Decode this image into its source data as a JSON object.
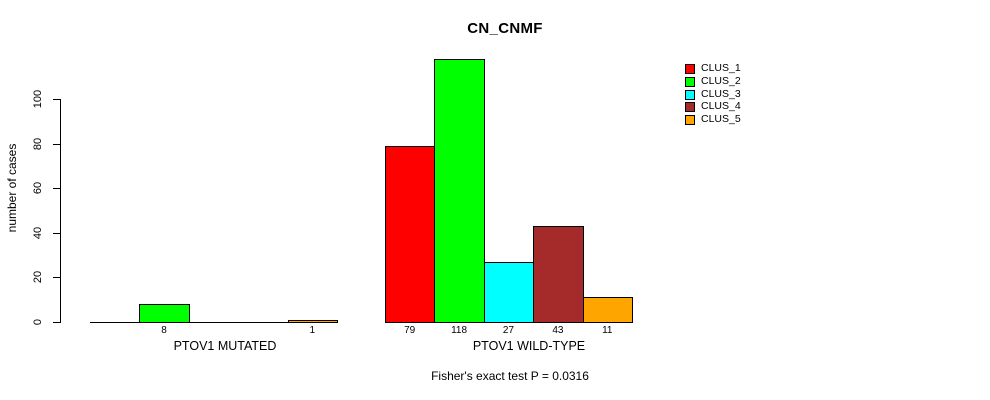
{
  "title": "CN_CNMF",
  "ylabel": "number of cases",
  "caption": "Fisher's exact test P = 0.0316",
  "chart_data": {
    "type": "bar",
    "title": "CN_CNMF",
    "xlabel": "",
    "ylabel": "number of cases",
    "groups": [
      "PTOV1 MUTATED",
      "PTOV1 WILD-TYPE"
    ],
    "series": [
      {
        "name": "CLUS_1",
        "color": "#FF0000",
        "values": [
          0,
          79
        ]
      },
      {
        "name": "CLUS_2",
        "color": "#00FF00",
        "values": [
          8,
          118
        ]
      },
      {
        "name": "CLUS_3",
        "color": "#00FFFF",
        "values": [
          0,
          27
        ]
      },
      {
        "name": "CLUS_4",
        "color": "#A52A2A",
        "values": [
          0,
          43
        ]
      },
      {
        "name": "CLUS_5",
        "color": "#FFA500",
        "values": [
          1,
          11
        ]
      }
    ],
    "bar_labels": [
      [
        "",
        "8",
        "",
        "",
        "1"
      ],
      [
        "79",
        "118",
        "27",
        "43",
        "11"
      ]
    ],
    "yticks": [
      0,
      20,
      40,
      60,
      80,
      100
    ],
    "ylim": [
      0,
      100
    ],
    "grid": false,
    "legend_position": "top-right",
    "legend_entries": [
      "CLUS_1",
      "CLUS_2",
      "CLUS_3",
      "CLUS_4",
      "CLUS_5"
    ],
    "annotation": "Fisher's exact test P = 0.0316",
    "axis_color": "#000000",
    "background_color": "#FFFFFF"
  }
}
